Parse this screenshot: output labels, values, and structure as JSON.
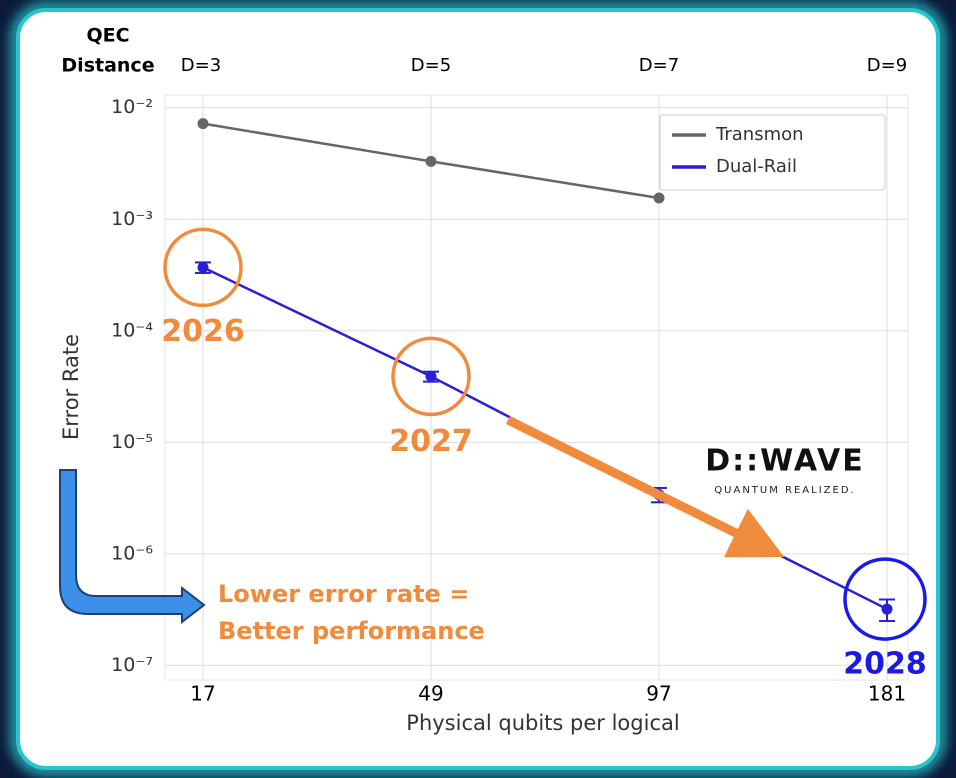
{
  "chart_data": {
    "type": "line",
    "axis_title_top": [
      "QEC",
      "Distance"
    ],
    "top_categories": [
      "D=3",
      "D=5",
      "D=7",
      "D=9"
    ],
    "categories": [
      "17",
      "49",
      "97",
      "181"
    ],
    "xlabel": "Physical qubits per logical",
    "ylabel": "Error Rate",
    "log_y": true,
    "grid": true,
    "legend": "upper right",
    "ylim": [
      7.4e-08,
      0.013
    ],
    "yticks": [
      {
        "value": 0.01,
        "label": "10⁻²"
      },
      {
        "value": 0.001,
        "label": "10⁻³"
      },
      {
        "value": 0.0001,
        "label": "10⁻⁴"
      },
      {
        "value": 1e-05,
        "label": "10⁻⁵"
      },
      {
        "value": 1e-06,
        "label": "10⁻⁶"
      },
      {
        "value": 1e-07,
        "label": "10⁻⁷"
      }
    ],
    "series": [
      {
        "name": "Transmon",
        "color": "#666666",
        "values": [
          0.0072,
          0.0033,
          0.00155,
          null
        ]
      },
      {
        "name": "Dual-Rail",
        "color": "#2a1fd6",
        "values": [
          0.00037,
          3.9e-05,
          3.4e-06,
          3.2e-07
        ],
        "errors": [
          4e-05,
          4e-06,
          5e-07,
          7e-08
        ]
      }
    ],
    "annotations": [
      {
        "text": "2026",
        "color": "#f08a3c"
      },
      {
        "text": "2027",
        "color": "#f08a3c"
      },
      {
        "text": "2028",
        "color": "#1a1ae6"
      }
    ],
    "callout": [
      "Lower error rate =",
      "Better performance"
    ],
    "logo": [
      "D::WAVE",
      "QUANTUM REALIZED."
    ]
  }
}
